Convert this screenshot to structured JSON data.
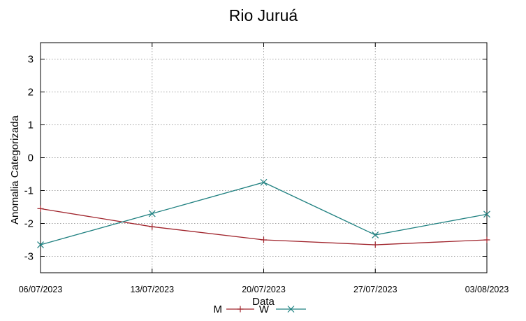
{
  "chart_data": {
    "type": "line",
    "title": "Rio Juruá",
    "xlabel": "Data",
    "ylabel": "Anomalia Categorizada",
    "categories": [
      "06/07/2023",
      "13/07/2023",
      "20/07/2023",
      "27/07/2023",
      "03/08/2023"
    ],
    "ylim": [
      -3.5,
      3.5
    ],
    "yticks": [
      3,
      2,
      1,
      0,
      -1,
      -2,
      -3
    ],
    "grid": true,
    "legend_position": "bottom",
    "series": [
      {
        "name": "M",
        "color": "#a0242c",
        "marker": "plus",
        "values": [
          -1.55,
          -2.1,
          -2.5,
          -2.65,
          -2.5
        ]
      },
      {
        "name": "W",
        "color": "#1f8080",
        "marker": "x",
        "values": [
          -2.65,
          -1.7,
          -0.75,
          -2.35,
          -1.72
        ]
      }
    ]
  }
}
